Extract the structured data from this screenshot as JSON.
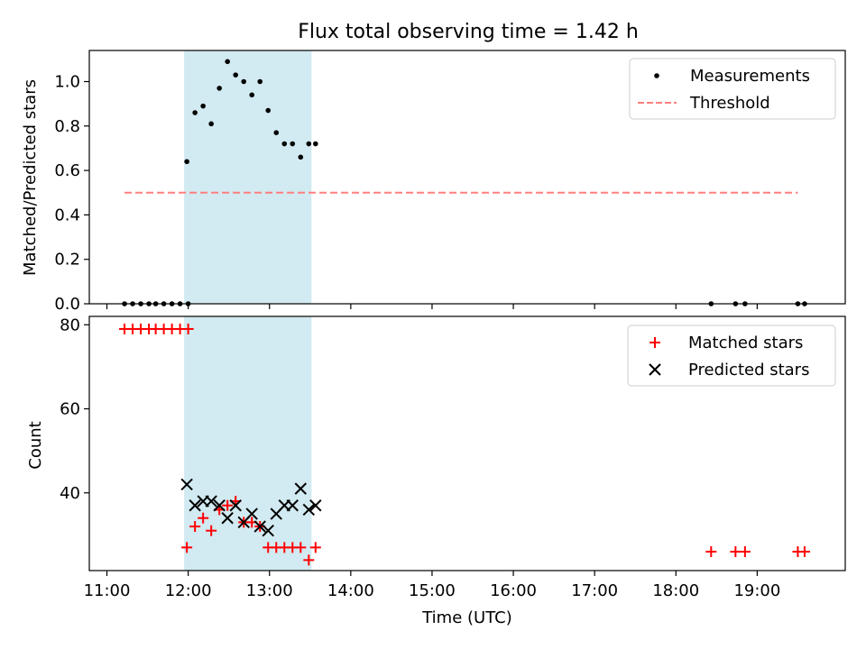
{
  "title": "Flux total observing time = 1.42 h",
  "chart_data": [
    {
      "type": "scatter",
      "ylabel": "Matched/Predicted stars",
      "xlim": [
        "10:47",
        "20:05"
      ],
      "ylim": [
        0,
        1.14
      ],
      "yticks": [
        "0.0",
        "0.2",
        "0.4",
        "0.6",
        "0.8",
        "1.0"
      ],
      "ytick_values": [
        0,
        0.2,
        0.4,
        0.6,
        0.8,
        1.0
      ],
      "highlight_span": [
        "11:57",
        "13:31"
      ],
      "legend_position": "top-right",
      "legend": [
        "Measurements",
        "Threshold"
      ],
      "threshold": {
        "name": "Threshold",
        "value": 0.5,
        "x": [
          "11:13",
          "19:30"
        ],
        "color": "#ff7f7f"
      },
      "measurements": {
        "name": "Measurements",
        "color": "#000000",
        "x": [
          "11:13",
          "11:19",
          "11:25",
          "11:31",
          "11:36",
          "11:42",
          "11:48",
          "11:54",
          "12:00",
          "11:59",
          "12:05",
          "12:11",
          "12:17",
          "12:23",
          "12:29",
          "12:35",
          "12:41",
          "12:47",
          "12:53",
          "12:59",
          "13:05",
          "13:11",
          "13:17",
          "13:23",
          "13:29",
          "13:34",
          "18:26",
          "18:44",
          "18:51",
          "19:30",
          "19:35"
        ],
        "y": [
          0,
          0,
          0,
          0,
          0,
          0,
          0,
          0,
          0,
          0.64,
          0.86,
          0.89,
          0.81,
          0.97,
          1.09,
          1.03,
          1.0,
          0.94,
          1.0,
          0.87,
          0.77,
          0.72,
          0.72,
          0.66,
          0.72,
          0.72,
          0,
          0,
          0,
          0,
          0
        ]
      }
    },
    {
      "type": "scatter",
      "ylabel": "Count",
      "xlabel": "Time (UTC)",
      "xlim": [
        "10:47",
        "20:05"
      ],
      "xticks": [
        "11:00",
        "12:00",
        "13:00",
        "14:00",
        "15:00",
        "16:00",
        "17:00",
        "18:00",
        "19:00"
      ],
      "ylim": [
        21.5,
        82
      ],
      "yticks": [
        "40",
        "60",
        "80"
      ],
      "ytick_values": [
        40,
        60,
        80
      ],
      "highlight_span": [
        "11:57",
        "13:31"
      ],
      "legend_position": "top-right",
      "legend": [
        "Matched stars",
        "Predicted stars"
      ],
      "series": [
        {
          "name": "Matched stars",
          "marker": "+",
          "color": "#ff0000",
          "x": [
            "11:13",
            "11:19",
            "11:25",
            "11:31",
            "11:36",
            "11:42",
            "11:48",
            "11:54",
            "12:00",
            "11:59",
            "12:05",
            "12:11",
            "12:17",
            "12:23",
            "12:29",
            "12:35",
            "12:41",
            "12:47",
            "12:53",
            "12:59",
            "13:05",
            "13:11",
            "13:17",
            "13:23",
            "13:29",
            "13:34",
            "18:26",
            "18:44",
            "18:51",
            "19:30",
            "19:35"
          ],
          "y": [
            79,
            79,
            79,
            79,
            79,
            79,
            79,
            79,
            79,
            27,
            32,
            34,
            31,
            36,
            37,
            38,
            33,
            33,
            32,
            27,
            27,
            27,
            27,
            27,
            24,
            27,
            26,
            26,
            26,
            26,
            26
          ]
        },
        {
          "name": "Predicted stars",
          "marker": "x",
          "color": "#000000",
          "x": [
            "11:59",
            "12:05",
            "12:11",
            "12:17",
            "12:23",
            "12:29",
            "12:35",
            "12:41",
            "12:47",
            "12:53",
            "12:59",
            "13:05",
            "13:11",
            "13:17",
            "13:23",
            "13:29",
            "13:34"
          ],
          "y": [
            42,
            37,
            38,
            38,
            37,
            34,
            37,
            33,
            35,
            32,
            31,
            35,
            37,
            37,
            41,
            36,
            37
          ]
        }
      ]
    }
  ]
}
